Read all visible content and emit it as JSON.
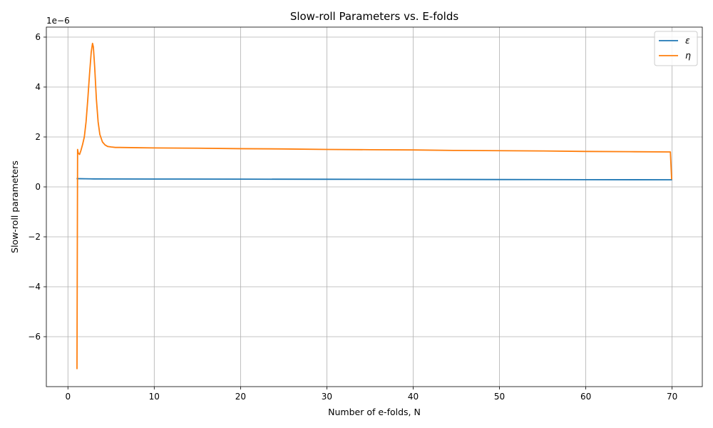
{
  "chart_data": {
    "type": "line",
    "title": "Slow-roll Parameters vs. E-folds",
    "xlabel": "Number of e-folds, N",
    "ylabel": "Slow-roll parameters",
    "y_offset_text": "1e−6",
    "xlim": [
      -2.5,
      73.5
    ],
    "ylim": [
      -8e-06,
      6.4e-06
    ],
    "x_ticks": [
      0,
      10,
      20,
      30,
      40,
      50,
      60,
      70
    ],
    "y_ticks": [
      -6,
      -4,
      -2,
      0,
      2,
      4,
      6
    ],
    "y_tick_labels": [
      "−6",
      "−4",
      "−2",
      "0",
      "2",
      "4",
      "6"
    ],
    "y_tick_scale": 1e-06,
    "grid": true,
    "legend_position": "top-right",
    "series": [
      {
        "name": "ε",
        "color": "#1f77b4",
        "x": [
          1.0,
          2,
          3,
          5,
          10,
          20,
          30,
          40,
          50,
          60,
          70
        ],
        "y": [
          3.3e-07,
          3.25e-07,
          3.2e-07,
          3.18e-07,
          3.15e-07,
          3.1e-07,
          3.05e-07,
          3e-07,
          2.95e-07,
          2.9e-07,
          2.85e-07
        ]
      },
      {
        "name": "η",
        "color": "#ff7f0e",
        "x": [
          1.05,
          1.12,
          1.2,
          1.35,
          1.5,
          1.7,
          1.9,
          2.1,
          2.3,
          2.5,
          2.7,
          2.85,
          2.95,
          3.1,
          3.3,
          3.5,
          3.7,
          4.0,
          4.3,
          4.6,
          5.0,
          5.5,
          6,
          8,
          10,
          15,
          20,
          25,
          30,
          35,
          40,
          45,
          50,
          55,
          60,
          65,
          69.8,
          69.95
        ],
        "y": [
          -7.3e-06,
          1.5e-06,
          1.35e-06,
          1.3e-06,
          1.45e-06,
          1.7e-06,
          2e-06,
          2.6e-06,
          3.5e-06,
          4.5e-06,
          5.4e-06,
          5.75e-06,
          5.6e-06,
          4.8e-06,
          3.5e-06,
          2.6e-06,
          2.1e-06,
          1.8e-06,
          1.68e-06,
          1.62e-06,
          1.6e-06,
          1.58e-06,
          1.58e-06,
          1.57e-06,
          1.56e-06,
          1.55e-06,
          1.53e-06,
          1.52e-06,
          1.5e-06,
          1.49e-06,
          1.48e-06,
          1.46e-06,
          1.45e-06,
          1.44e-06,
          1.42e-06,
          1.41e-06,
          1.4e-06,
          3e-07
        ]
      }
    ]
  }
}
